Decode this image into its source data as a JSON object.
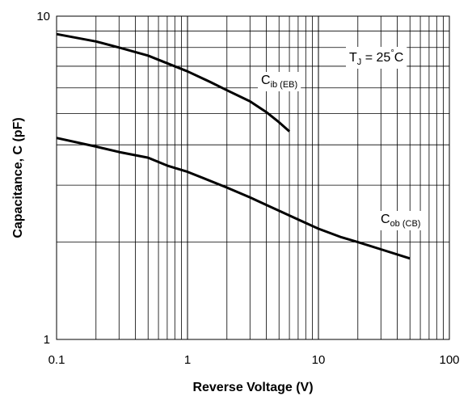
{
  "chart_data": {
    "type": "line",
    "xlabel": "Reverse Voltage (V)",
    "ylabel": "Capacitance, C (pF)",
    "x_scale": "log",
    "y_scale": "log",
    "xlim": [
      0.1,
      100
    ],
    "ylim": [
      1,
      10
    ],
    "grid": true,
    "x_tick_labels": [
      "0.1",
      "1",
      "10",
      "100"
    ],
    "y_tick_labels": [
      "1",
      "10"
    ],
    "series": [
      {
        "label_main": "C",
        "label_sub": "ib (EB)",
        "x": [
          0.1,
          0.2,
          0.3,
          0.5,
          0.7,
          1,
          1.5,
          2,
          3,
          4,
          5,
          6
        ],
        "y": [
          8.8,
          8.35,
          8.0,
          7.55,
          7.15,
          6.75,
          6.25,
          5.9,
          5.45,
          5.05,
          4.7,
          4.4
        ]
      },
      {
        "label_main": "C",
        "label_sub": "ob (CB)",
        "x": [
          0.1,
          0.2,
          0.3,
          0.5,
          0.7,
          1,
          2,
          3,
          5,
          7,
          10,
          15,
          20,
          30,
          50
        ],
        "y": [
          4.2,
          3.95,
          3.8,
          3.65,
          3.45,
          3.3,
          2.95,
          2.75,
          2.5,
          2.35,
          2.2,
          2.07,
          2.0,
          1.9,
          1.78
        ]
      }
    ],
    "annotation": {
      "main": "T",
      "sub": "J",
      "rest": " = 25",
      "degree": "°",
      "unit": "C"
    }
  }
}
